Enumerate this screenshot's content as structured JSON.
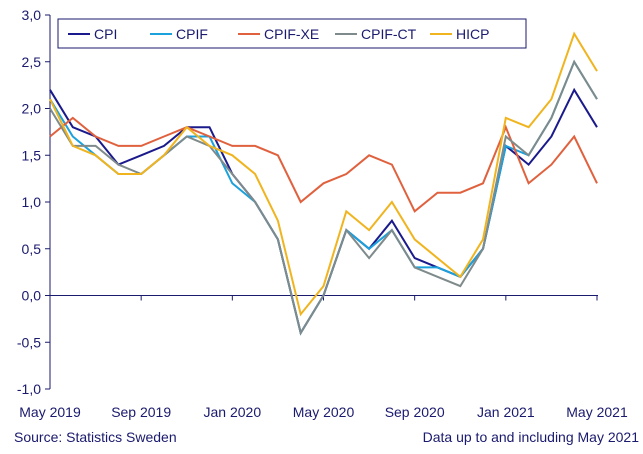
{
  "source": "Source: Statistics Sweden",
  "note": "Data up to and including May 2021",
  "chart_data": {
    "type": "line",
    "title": "",
    "xlabel": "",
    "ylabel": "",
    "ylim": [
      -1.0,
      3.0
    ],
    "yticks": [
      "3,0",
      "2,5",
      "2,0",
      "1,5",
      "1,0",
      "0,5",
      "0,0",
      "-0,5",
      "-1,0"
    ],
    "ytick_values": [
      3.0,
      2.5,
      2.0,
      1.5,
      1.0,
      0.5,
      0.0,
      -0.5,
      -1.0
    ],
    "x": [
      "May 2019",
      "Jun 2019",
      "Jul 2019",
      "Aug 2019",
      "Sep 2019",
      "Oct 2019",
      "Nov 2019",
      "Dec 2019",
      "Jan 2020",
      "Feb 2020",
      "Mar 2020",
      "Apr 2020",
      "May 2020",
      "Jun 2020",
      "Jul 2020",
      "Aug 2020",
      "Sep 2020",
      "Oct 2020",
      "Nov 2020",
      "Dec 2020",
      "Jan 2021",
      "Feb 2021",
      "Mar 2021",
      "Apr 2021",
      "May 2021"
    ],
    "xtick_labels": [
      "May 2019",
      "Sep 2019",
      "Jan 2020",
      "May 2020",
      "Sep 2020",
      "Jan 2021",
      "May 2021"
    ],
    "grid": false,
    "legend_position": "top",
    "series": [
      {
        "name": "CPI",
        "color": "#1a1a8c",
        "values": [
          2.2,
          1.8,
          1.7,
          1.4,
          1.5,
          1.6,
          1.8,
          1.8,
          1.3,
          1.0,
          0.6,
          -0.4,
          0.0,
          0.7,
          0.5,
          0.8,
          0.4,
          0.3,
          0.2,
          0.5,
          1.6,
          1.4,
          1.7,
          2.2,
          1.8
        ]
      },
      {
        "name": "CPIF",
        "color": "#1ba1dc",
        "values": [
          2.1,
          1.7,
          1.5,
          1.3,
          1.3,
          1.5,
          1.7,
          1.7,
          1.2,
          1.0,
          0.6,
          -0.4,
          0.0,
          0.7,
          0.5,
          0.7,
          0.3,
          0.3,
          0.2,
          0.5,
          1.6,
          1.5,
          1.9,
          2.5,
          2.1
        ]
      },
      {
        "name": "CPIF-XE",
        "color": "#e0613e",
        "values": [
          1.7,
          1.9,
          1.7,
          1.6,
          1.6,
          1.7,
          1.8,
          1.7,
          1.6,
          1.6,
          1.5,
          1.0,
          1.2,
          1.3,
          1.5,
          1.4,
          0.9,
          1.1,
          1.1,
          1.2,
          1.8,
          1.2,
          1.4,
          1.7,
          1.2
        ]
      },
      {
        "name": "CPIF-CT",
        "color": "#7f8a8a",
        "values": [
          2.0,
          1.6,
          1.6,
          1.4,
          1.3,
          1.5,
          1.7,
          1.6,
          1.3,
          1.0,
          0.6,
          -0.4,
          0.0,
          0.7,
          0.4,
          0.7,
          0.3,
          0.2,
          0.1,
          0.5,
          1.7,
          1.5,
          1.9,
          2.5,
          2.1
        ]
      },
      {
        "name": "HICP",
        "color": "#f0b41e",
        "values": [
          2.1,
          1.6,
          1.5,
          1.3,
          1.3,
          1.5,
          1.8,
          1.6,
          1.5,
          1.3,
          0.8,
          -0.2,
          0.1,
          0.9,
          0.7,
          1.0,
          0.6,
          0.4,
          0.2,
          0.6,
          1.9,
          1.8,
          2.1,
          2.8,
          2.4
        ]
      }
    ]
  }
}
